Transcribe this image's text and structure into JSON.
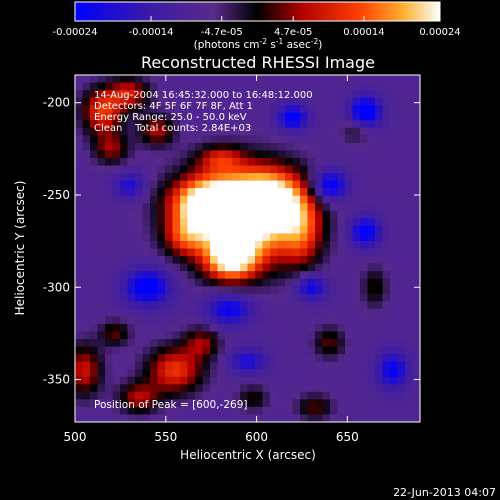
{
  "chart_data": {
    "type": "heatmap",
    "title": "Reconstructed RHESSI Image",
    "xlabel": "Heliocentric X (arcsec)",
    "ylabel": "Heliocentric Y (arcsec)",
    "xlim": [
      500,
      690
    ],
    "ylim": [
      -373,
      -185
    ],
    "x_ticks": [
      500,
      550,
      600,
      650
    ],
    "x_tick_labels": [
      "500",
      "550",
      "600",
      "650"
    ],
    "y_ticks": [
      -200,
      -250,
      -300,
      -350
    ],
    "y_tick_labels": [
      "-200",
      "-250",
      "-300",
      "-350"
    ],
    "colorbar": {
      "range": [
        -0.00024,
        0.00024
      ],
      "ticks": [
        -0.00024,
        -0.00014,
        -4.7e-05,
        4.7e-05,
        0.00014,
        0.00024
      ],
      "tick_labels": [
        "-0.00024",
        "-0.00014",
        "-4.7e-05",
        "4.7e-05",
        "0.00014",
        "0.00024"
      ],
      "unit_prefix": "(photons cm",
      "unit_exp1": "-2",
      "unit_mid": " s",
      "unit_exp2": "-1",
      "unit_tail": " asec",
      "unit_exp3": "-2",
      "unit_close": ")"
    },
    "annotations": [
      "14-Aug-2004 16:45:32.000 to 16:48:12.000",
      "Detectors: 4F 5F 6F 7F 8F, Att 1",
      "Energy Range: 25.0 - 50.0 keV",
      "Clean    Total counts: 2.84E+03"
    ],
    "peak_label": "Position of Peak = [600,-269]",
    "peak": {
      "x": 600,
      "y": -269
    },
    "sources": [
      {
        "x": 593,
        "y": -262,
        "rx": 22,
        "ry": 18,
        "amp": 1.0
      },
      {
        "x": 572,
        "y": -255,
        "rx": 14,
        "ry": 10,
        "amp": 0.75
      },
      {
        "x": 608,
        "y": -252,
        "rx": 13,
        "ry": 11,
        "amp": 0.6
      },
      {
        "x": 586,
        "y": -285,
        "rx": 10,
        "ry": 8,
        "amp": 0.75
      },
      {
        "x": 625,
        "y": -270,
        "rx": 8,
        "ry": 14,
        "amp": 0.4
      },
      {
        "x": 560,
        "y": -273,
        "rx": 8,
        "ry": 7,
        "amp": 0.35
      },
      {
        "x": 515,
        "y": -205,
        "rx": 8,
        "ry": 9,
        "amp": 0.55
      },
      {
        "x": 530,
        "y": -195,
        "rx": 8,
        "ry": 6,
        "amp": 0.45
      },
      {
        "x": 545,
        "y": -215,
        "rx": 7,
        "ry": 6,
        "amp": 0.4
      },
      {
        "x": 520,
        "y": -225,
        "rx": 7,
        "ry": 6,
        "amp": 0.35
      },
      {
        "x": 580,
        "y": -230,
        "rx": 9,
        "ry": 5,
        "amp": 0.35
      },
      {
        "x": 505,
        "y": -345,
        "rx": 7,
        "ry": 10,
        "amp": 0.45
      },
      {
        "x": 555,
        "y": -345,
        "rx": 11,
        "ry": 9,
        "amp": 0.55
      },
      {
        "x": 535,
        "y": -360,
        "rx": 8,
        "ry": 6,
        "amp": 0.4
      },
      {
        "x": 570,
        "y": -330,
        "rx": 7,
        "ry": 6,
        "amp": 0.35
      },
      {
        "x": 522,
        "y": -325,
        "rx": 6,
        "ry": 5,
        "amp": 0.3
      },
      {
        "x": 640,
        "y": -330,
        "rx": 6,
        "ry": 6,
        "amp": 0.3
      },
      {
        "x": 665,
        "y": -300,
        "rx": 5,
        "ry": 8,
        "amp": 0.25
      },
      {
        "x": 632,
        "y": -365,
        "rx": 7,
        "ry": 5,
        "amp": 0.3
      },
      {
        "x": 598,
        "y": -360,
        "rx": 6,
        "ry": 5,
        "amp": 0.25
      },
      {
        "x": 655,
        "y": -215,
        "rx": 6,
        "ry": 5,
        "amp": 0.2
      },
      {
        "x": 640,
        "y": -245,
        "rx": 7,
        "ry": 6,
        "amp": -0.55
      },
      {
        "x": 660,
        "y": -205,
        "rx": 6,
        "ry": 6,
        "amp": -0.6
      },
      {
        "x": 620,
        "y": -208,
        "rx": 6,
        "ry": 5,
        "amp": -0.5
      },
      {
        "x": 540,
        "y": -300,
        "rx": 9,
        "ry": 7,
        "amp": -0.55
      },
      {
        "x": 585,
        "y": -312,
        "rx": 9,
        "ry": 6,
        "amp": -0.45
      },
      {
        "x": 630,
        "y": -300,
        "rx": 6,
        "ry": 5,
        "amp": -0.45
      },
      {
        "x": 660,
        "y": -270,
        "rx": 6,
        "ry": 6,
        "amp": -0.5
      },
      {
        "x": 675,
        "y": -345,
        "rx": 6,
        "ry": 7,
        "amp": -0.45
      },
      {
        "x": 595,
        "y": -340,
        "rx": 7,
        "ry": 5,
        "amp": -0.35
      },
      {
        "x": 530,
        "y": -245,
        "rx": 6,
        "ry": 5,
        "amp": -0.35
      }
    ]
  },
  "footer": {
    "date": "22-Jun-2013 04:07"
  }
}
